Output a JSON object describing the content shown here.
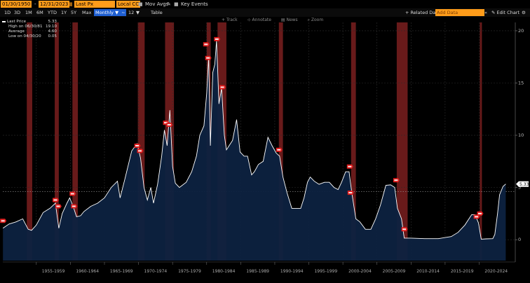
{
  "toolbar": {
    "start_date": "01/30/1950",
    "end_date": "12/31/2023",
    "field": "Last Px",
    "currency": "Local CCY",
    "mov_avgs": "Mov Avgs",
    "key_events": "Key Events",
    "periods": [
      "1D",
      "3D",
      "1M",
      "6M",
      "YTD",
      "1Y",
      "5Y",
      "Max"
    ],
    "frequency": "Monthly",
    "compare": "12",
    "table": "Table",
    "related_data": "Related Dat",
    "add_data_placeholder": "Add Data",
    "edit_chart": "Edit Chart",
    "icons": [
      "calendar-icon",
      "pencil-icon",
      "settings-icon",
      "chevron-double-left-icon",
      "chevron-double-right-icon",
      "zoom-icon"
    ]
  },
  "overlay_tools": [
    "Track",
    "Annotate",
    "News",
    "Zoom"
  ],
  "legend": {
    "last_price_label": "Last Price",
    "last_price_value": "5.33",
    "high_label": "High on 06/30/81",
    "high_value": "19.10",
    "average_label": "Average",
    "average_value": "4.60",
    "low_label": "Low on 04/30/20",
    "low_value": "0.05"
  },
  "last_value_badge": "5.33",
  "chart_data": {
    "type": "area",
    "y_ticks": [
      "0",
      "5",
      "10",
      "15",
      "20"
    ],
    "ylim": [
      -2,
      20.8
    ],
    "x_ticks": [
      "1955-1959",
      "1960-1964",
      "1965-1969",
      "1970-1974",
      "1975-1979",
      "1980-1984",
      "1985-1989",
      "1990-1994",
      "1995-1999",
      "2000-2004",
      "2005-2009",
      "2010-2014",
      "2015-2019",
      "2020-2024"
    ],
    "xlim": [
      1950.08,
      2025.3
    ],
    "series": [
      {
        "points": [
          [
            1950.1,
            1.1
          ],
          [
            1951.0,
            1.5
          ],
          [
            1952.0,
            1.7
          ],
          [
            1953.0,
            2.0
          ],
          [
            1953.8,
            1.0
          ],
          [
            1954.3,
            0.9
          ],
          [
            1955.0,
            1.4
          ],
          [
            1956.0,
            2.6
          ],
          [
            1957.0,
            3.0
          ],
          [
            1957.8,
            3.5
          ],
          [
            1958.3,
            1.1
          ],
          [
            1958.8,
            2.5
          ],
          [
            1959.5,
            3.5
          ],
          [
            1959.9,
            4.0
          ],
          [
            1960.4,
            3.2
          ],
          [
            1960.9,
            2.2
          ],
          [
            1961.5,
            2.3
          ],
          [
            1962.0,
            2.7
          ],
          [
            1963.0,
            3.2
          ],
          [
            1964.0,
            3.5
          ],
          [
            1965.0,
            4.0
          ],
          [
            1966.0,
            5.0
          ],
          [
            1966.9,
            5.6
          ],
          [
            1967.3,
            4.0
          ],
          [
            1968.0,
            5.8
          ],
          [
            1969.0,
            8.5
          ],
          [
            1969.8,
            9.2
          ],
          [
            1970.3,
            7.8
          ],
          [
            1970.8,
            5.0
          ],
          [
            1971.3,
            3.8
          ],
          [
            1971.8,
            5.0
          ],
          [
            1972.2,
            3.5
          ],
          [
            1972.8,
            5.3
          ],
          [
            1973.4,
            8.0
          ],
          [
            1973.8,
            10.5
          ],
          [
            1974.2,
            9.0
          ],
          [
            1974.6,
            12.4
          ],
          [
            1975.0,
            7.0
          ],
          [
            1975.4,
            5.4
          ],
          [
            1976.0,
            5.0
          ],
          [
            1977.0,
            5.5
          ],
          [
            1977.8,
            6.5
          ],
          [
            1978.5,
            8.0
          ],
          [
            1979.0,
            10.0
          ],
          [
            1979.6,
            10.9
          ],
          [
            1980.0,
            14.0
          ],
          [
            1980.3,
            17.5
          ],
          [
            1980.55,
            9.0
          ],
          [
            1980.9,
            16.0
          ],
          [
            1981.2,
            16.8
          ],
          [
            1981.45,
            19.1
          ],
          [
            1981.8,
            13.0
          ],
          [
            1982.2,
            14.5
          ],
          [
            1982.6,
            10.0
          ],
          [
            1982.9,
            8.6
          ],
          [
            1983.3,
            9.0
          ],
          [
            1983.8,
            9.5
          ],
          [
            1984.4,
            11.5
          ],
          [
            1984.9,
            8.4
          ],
          [
            1985.5,
            8.0
          ],
          [
            1986.0,
            8.0
          ],
          [
            1986.6,
            6.2
          ],
          [
            1987.0,
            6.5
          ],
          [
            1987.6,
            7.2
          ],
          [
            1988.3,
            7.5
          ],
          [
            1989.0,
            9.8
          ],
          [
            1989.6,
            9.0
          ],
          [
            1990.2,
            8.3
          ],
          [
            1990.7,
            8.0
          ],
          [
            1991.2,
            6.0
          ],
          [
            1991.8,
            4.5
          ],
          [
            1992.5,
            3.0
          ],
          [
            1993.0,
            3.0
          ],
          [
            1993.8,
            3.0
          ],
          [
            1994.3,
            4.0
          ],
          [
            1994.8,
            5.5
          ],
          [
            1995.2,
            6.0
          ],
          [
            1995.8,
            5.6
          ],
          [
            1996.5,
            5.3
          ],
          [
            1997.3,
            5.5
          ],
          [
            1998.0,
            5.5
          ],
          [
            1998.7,
            5.0
          ],
          [
            1999.3,
            4.8
          ],
          [
            1999.8,
            5.5
          ],
          [
            2000.4,
            6.5
          ],
          [
            2000.9,
            6.5
          ],
          [
            2001.3,
            4.5
          ],
          [
            2001.9,
            2.0
          ],
          [
            2002.5,
            1.7
          ],
          [
            2003.3,
            1.0
          ],
          [
            2004.1,
            1.0
          ],
          [
            2004.8,
            2.0
          ],
          [
            2005.5,
            3.3
          ],
          [
            2006.3,
            5.2
          ],
          [
            2007.0,
            5.25
          ],
          [
            2007.6,
            5.0
          ],
          [
            2008.0,
            3.0
          ],
          [
            2008.6,
            2.0
          ],
          [
            2009.0,
            0.15
          ],
          [
            2010.0,
            0.15
          ],
          [
            2012.0,
            0.1
          ],
          [
            2014.0,
            0.1
          ],
          [
            2015.9,
            0.3
          ],
          [
            2016.9,
            0.7
          ],
          [
            2017.9,
            1.4
          ],
          [
            2018.9,
            2.4
          ],
          [
            2019.4,
            2.4
          ],
          [
            2019.9,
            1.6
          ],
          [
            2020.3,
            0.05
          ],
          [
            2021.0,
            0.08
          ],
          [
            2022.0,
            0.1
          ],
          [
            2022.3,
            0.5
          ],
          [
            2022.7,
            2.5
          ],
          [
            2023.0,
            4.3
          ],
          [
            2023.5,
            5.1
          ],
          [
            2023.9,
            5.33
          ]
        ]
      }
    ],
    "recessions": [
      [
        1953.6,
        1954.4
      ],
      [
        1957.7,
        1958.3
      ],
      [
        1960.3,
        1961.1
      ],
      [
        1969.9,
        1970.9
      ],
      [
        1973.9,
        1975.2
      ],
      [
        1980.0,
        1980.6
      ],
      [
        1981.6,
        1982.9
      ],
      [
        1990.6,
        1991.2
      ],
      [
        2001.2,
        2001.9
      ],
      [
        2007.9,
        2009.5
      ],
      [
        2020.1,
        2020.4
      ]
    ],
    "event_markers": [
      [
        1950.1,
        1.8
      ],
      [
        1957.8,
        3.8
      ],
      [
        1958.2,
        3.2
      ],
      [
        1960.3,
        4.4
      ],
      [
        1960.5,
        3.2
      ],
      [
        1969.8,
        9.0
      ],
      [
        1970.2,
        8.5
      ],
      [
        1974.0,
        11.2
      ],
      [
        1974.5,
        11.0
      ],
      [
        1979.9,
        18.7
      ],
      [
        1980.2,
        17.4
      ],
      [
        1981.5,
        19.2
      ],
      [
        1982.3,
        14.6
      ],
      [
        1990.6,
        8.6
      ],
      [
        2001.0,
        7.0
      ],
      [
        2001.1,
        4.5
      ],
      [
        2007.8,
        5.7
      ],
      [
        2009.0,
        1.0
      ],
      [
        2019.6,
        2.2
      ],
      [
        2020.1,
        2.5
      ]
    ],
    "colors": {
      "line": "#ffffff",
      "fill": "#0d2240",
      "recession": "#7a1e1e",
      "marker": "#e01c1c",
      "grid": "#2c2c2c",
      "average": "#9a9a9a"
    }
  }
}
